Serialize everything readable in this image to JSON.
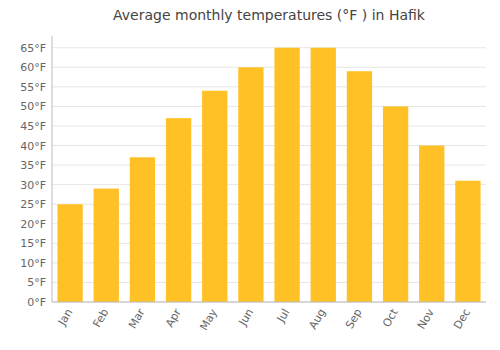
{
  "chart_data": {
    "type": "bar",
    "title": "Average monthly temperatures (°F ) in Hafik",
    "categories": [
      "Jan",
      "Feb",
      "Mar",
      "Apr",
      "May",
      "Jun",
      "Jul",
      "Aug",
      "Sep",
      "Oct",
      "Nov",
      "Dec"
    ],
    "values": [
      25,
      29,
      37,
      47,
      54,
      60,
      65,
      65,
      59,
      50,
      40,
      31
    ],
    "color": "#FFC125",
    "ylim": [
      0,
      68
    ],
    "yticks": [
      {
        "value": 0,
        "label": "0°F"
      },
      {
        "value": 5,
        "label": "5°F"
      },
      {
        "value": 10,
        "label": "10°F"
      },
      {
        "value": 15,
        "label": "15°F"
      },
      {
        "value": 20,
        "label": "20°F"
      },
      {
        "value": 25,
        "label": "25°F"
      },
      {
        "value": 30,
        "label": "30°F"
      },
      {
        "value": 35,
        "label": "35°F"
      },
      {
        "value": 40,
        "label": "40°F"
      },
      {
        "value": 45,
        "label": "45°F"
      },
      {
        "value": 50,
        "label": "50°F"
      },
      {
        "value": 55,
        "label": "55°F"
      },
      {
        "value": 60,
        "label": "60°F"
      },
      {
        "value": 65,
        "label": "65°F"
      }
    ],
    "grid": true
  }
}
